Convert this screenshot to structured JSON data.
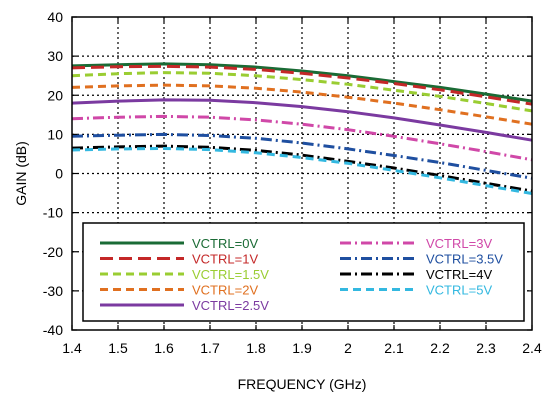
{
  "chart_data": {
    "type": "line",
    "xlabel": "FREQUENCY (GHz)",
    "ylabel": "GAIN (dB)",
    "xlim": [
      1.4,
      2.4
    ],
    "ylim": [
      -40,
      40
    ],
    "x_ticks": [
      "1.4",
      "1.5",
      "1.6",
      "1.7",
      "1.8",
      "1.9",
      "2",
      "2.1",
      "2.2",
      "2.3",
      "2.4"
    ],
    "y_ticks": [
      "40",
      "30",
      "20",
      "10",
      "0",
      "-10",
      "-20",
      "-30",
      "-40"
    ],
    "grid": "dotted",
    "legend_position": "bottom",
    "x": [
      1.4,
      1.5,
      1.6,
      1.7,
      1.8,
      1.9,
      2.0,
      2.1,
      2.2,
      2.3,
      2.4
    ],
    "series": [
      {
        "name": "VCTRL=0V",
        "color": "#1a6b35",
        "dash": "solid",
        "values": [
          27.5,
          27.8,
          28.0,
          27.8,
          27.2,
          26.2,
          25.0,
          23.5,
          22.0,
          20.3,
          18.5
        ]
      },
      {
        "name": "VCTRL=1V",
        "color": "#c42828",
        "dash": "longdash",
        "values": [
          27.0,
          27.3,
          27.4,
          27.2,
          26.6,
          25.6,
          24.4,
          23.0,
          21.4,
          19.6,
          17.7
        ]
      },
      {
        "name": "VCTRL=1.5V",
        "color": "#9acd32",
        "dash": "dash",
        "values": [
          25.0,
          25.5,
          25.8,
          25.6,
          25.0,
          24.0,
          22.8,
          21.3,
          19.7,
          17.9,
          16.0
        ]
      },
      {
        "name": "VCTRL=2V",
        "color": "#e07020",
        "dash": "dash",
        "values": [
          22.0,
          22.4,
          22.6,
          22.4,
          21.8,
          20.8,
          19.5,
          18.0,
          16.3,
          14.5,
          12.6
        ]
      },
      {
        "name": "VCTRL=2.5V",
        "color": "#7b3aa0",
        "dash": "solid",
        "values": [
          18.0,
          18.5,
          18.8,
          18.7,
          18.1,
          17.1,
          15.8,
          14.2,
          12.4,
          10.5,
          8.5
        ]
      },
      {
        "name": "VCTRL=3V",
        "color": "#d048a8",
        "dash": "dashdot",
        "values": [
          14.0,
          14.4,
          14.6,
          14.4,
          13.7,
          12.6,
          11.2,
          9.5,
          7.6,
          5.6,
          3.5
        ]
      },
      {
        "name": "VCTRL=3.5V",
        "color": "#1f4fa0",
        "dash": "dashdot",
        "values": [
          9.5,
          9.8,
          10.0,
          9.7,
          9.0,
          7.8,
          6.3,
          4.6,
          2.8,
          0.8,
          -1.2
        ]
      },
      {
        "name": "VCTRL=4V",
        "color": "#000000",
        "dash": "dashdot",
        "values": [
          6.5,
          6.8,
          7.0,
          6.7,
          5.9,
          4.7,
          3.1,
          1.4,
          -0.5,
          -2.5,
          -4.5
        ]
      },
      {
        "name": "VCTRL=5V",
        "color": "#33b8e0",
        "dash": "dash",
        "values": [
          6.0,
          6.3,
          6.4,
          6.1,
          5.3,
          4.1,
          2.6,
          0.8,
          -1.1,
          -3.1,
          -5.1
        ]
      }
    ]
  }
}
